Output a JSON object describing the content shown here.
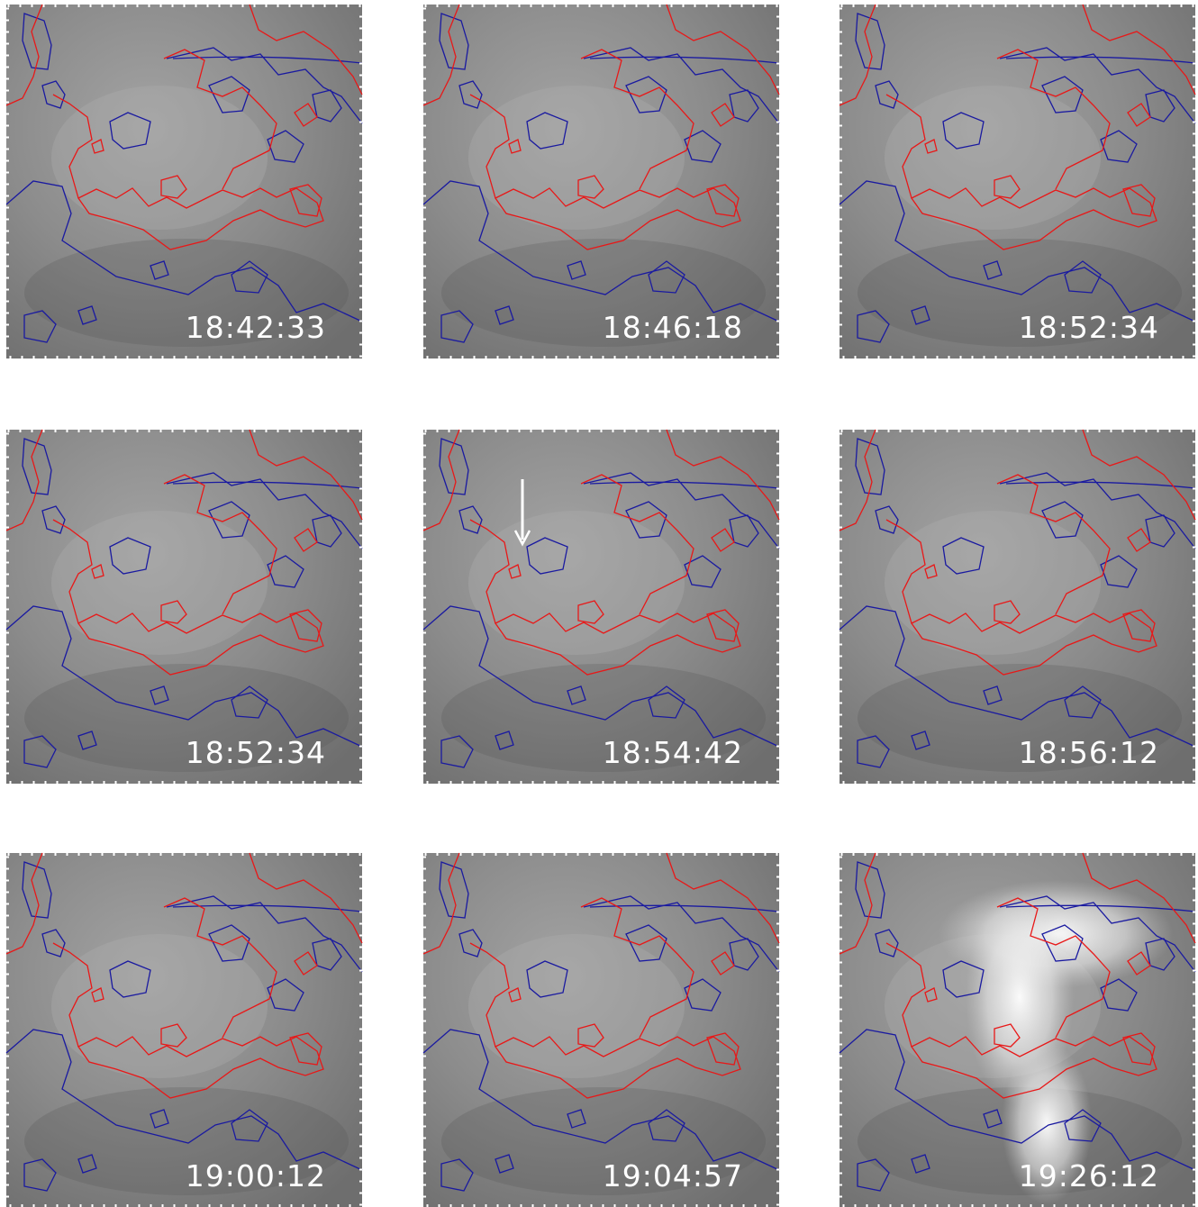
{
  "panels": [
    {
      "time": "18:42:33"
    },
    {
      "time": "18:46:18"
    },
    {
      "time": "18:52:34"
    },
    {
      "time": "18:52:34"
    },
    {
      "time": "18:54:42"
    },
    {
      "time": "18:56:12"
    },
    {
      "time": "19:00:12"
    },
    {
      "time": "19:04:57"
    },
    {
      "time": "19:26:12"
    }
  ]
}
